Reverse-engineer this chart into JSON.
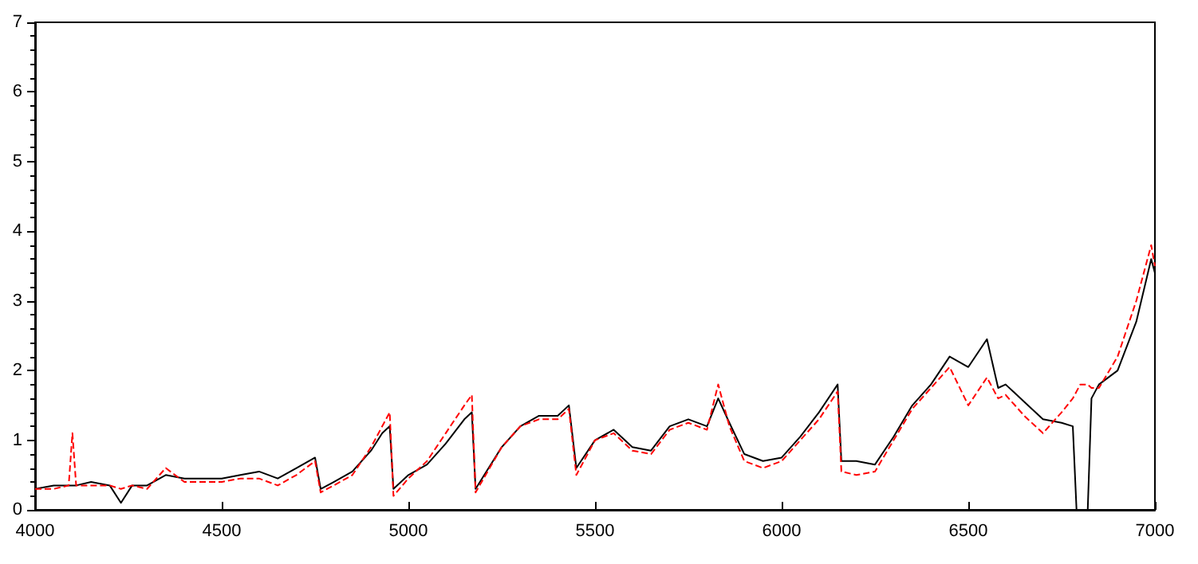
{
  "chart_data": {
    "type": "line",
    "x": [
      4000,
      4050,
      4090,
      4100,
      4110,
      4150,
      4200,
      4230,
      4260,
      4300,
      4350,
      4400,
      4450,
      4500,
      4550,
      4600,
      4650,
      4700,
      4750,
      4765,
      4800,
      4850,
      4900,
      4930,
      4950,
      4960,
      5000,
      5050,
      5100,
      5150,
      5170,
      5180,
      5250,
      5300,
      5350,
      5400,
      5430,
      5450,
      5500,
      5550,
      5600,
      5650,
      5700,
      5750,
      5800,
      5830,
      5860,
      5900,
      5950,
      6000,
      6050,
      6100,
      6150,
      6160,
      6200,
      6250,
      6300,
      6350,
      6400,
      6450,
      6500,
      6550,
      6580,
      6600,
      6650,
      6700,
      6750,
      6780,
      6790,
      6800,
      6820,
      6830,
      6850,
      6900,
      6950,
      6990,
      7000
    ],
    "series": [
      {
        "color": "#000000",
        "line_style": "solid",
        "values": [
          0.3,
          0.35,
          0.35,
          0.35,
          0.35,
          0.4,
          0.35,
          0.1,
          0.35,
          0.35,
          0.5,
          0.45,
          0.45,
          0.45,
          0.5,
          0.55,
          0.45,
          0.6,
          0.75,
          0.3,
          0.4,
          0.55,
          0.85,
          1.1,
          1.2,
          0.3,
          0.5,
          0.65,
          0.95,
          1.3,
          1.4,
          0.3,
          0.9,
          1.2,
          1.35,
          1.35,
          1.5,
          0.6,
          1.0,
          1.15,
          0.9,
          0.85,
          1.2,
          1.3,
          1.2,
          1.6,
          1.25,
          0.8,
          0.7,
          0.75,
          1.05,
          1.4,
          1.8,
          0.7,
          0.7,
          0.65,
          1.05,
          1.5,
          1.8,
          2.2,
          2.05,
          2.45,
          1.75,
          1.8,
          1.55,
          1.3,
          1.25,
          1.2,
          0,
          0,
          0,
          1.6,
          1.8,
          2.0,
          2.7,
          3.6,
          3.4
        ]
      },
      {
        "color": "#ff0000",
        "line_style": "dashed",
        "values": [
          0.3,
          0.3,
          0.35,
          1.1,
          0.35,
          0.35,
          0.35,
          0.3,
          0.35,
          0.3,
          0.6,
          0.4,
          0.4,
          0.4,
          0.45,
          0.45,
          0.35,
          0.5,
          0.7,
          0.25,
          0.35,
          0.5,
          0.9,
          1.2,
          1.4,
          0.2,
          0.45,
          0.7,
          1.1,
          1.5,
          1.65,
          0.25,
          0.9,
          1.2,
          1.3,
          1.3,
          1.45,
          0.5,
          1.0,
          1.1,
          0.85,
          0.8,
          1.15,
          1.25,
          1.15,
          1.8,
          1.2,
          0.7,
          0.6,
          0.7,
          1.0,
          1.3,
          1.7,
          0.55,
          0.5,
          0.55,
          1.0,
          1.45,
          1.75,
          2.05,
          1.5,
          1.9,
          1.6,
          1.65,
          1.35,
          1.1,
          1.4,
          1.6,
          1.7,
          1.8,
          1.8,
          1.75,
          1.75,
          2.2,
          3.0,
          3.8,
          3.5
        ]
      }
    ],
    "xlim": [
      4000,
      7000
    ],
    "xticks": [
      4000,
      4500,
      5000,
      5500,
      6000,
      6500,
      7000
    ],
    "ylim": [
      0,
      7
    ],
    "yticks": [
      0,
      1,
      2,
      3,
      4,
      5,
      6,
      7
    ],
    "grid": false,
    "marker": "none"
  }
}
